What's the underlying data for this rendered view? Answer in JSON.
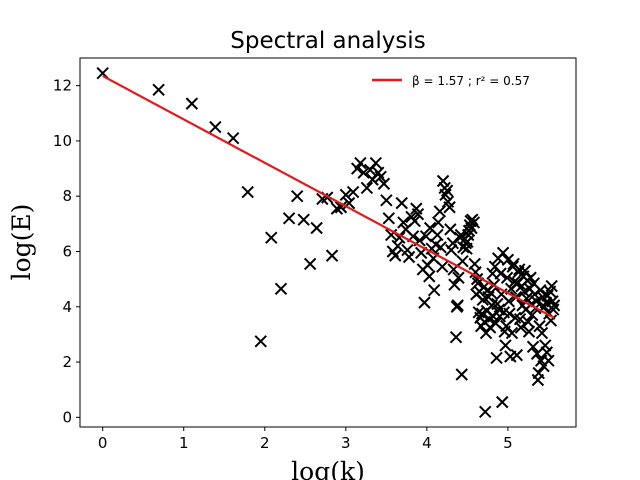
{
  "chart_data": {
    "type": "scatter",
    "title": "Spectral analysis",
    "xlabel": "log(k)",
    "ylabel": "log(E)",
    "xlim": [
      -0.28,
      5.84
    ],
    "ylim": [
      -0.35,
      13.0
    ],
    "xticks": [
      0,
      1,
      2,
      3,
      4,
      5
    ],
    "yticks": [
      0,
      2,
      4,
      6,
      8,
      10,
      12
    ],
    "grid": false,
    "legend_placement": "top-right",
    "series": [
      {
        "name": "",
        "marker": "x",
        "color": "#000000",
        "points": [
          [
            0.0,
            12.45
          ],
          [
            0.69,
            11.85
          ],
          [
            1.1,
            11.35
          ],
          [
            1.39,
            10.5
          ],
          [
            1.61,
            10.1
          ],
          [
            1.79,
            8.15
          ],
          [
            1.95,
            2.75
          ],
          [
            2.08,
            6.5
          ],
          [
            2.2,
            4.65
          ],
          [
            2.3,
            7.2
          ],
          [
            2.4,
            8.0
          ],
          [
            2.48,
            7.15
          ],
          [
            2.56,
            5.55
          ],
          [
            2.64,
            6.85
          ],
          [
            2.71,
            7.9
          ],
          [
            2.77,
            7.95
          ],
          [
            2.83,
            5.85
          ],
          [
            2.89,
            7.55
          ],
          [
            2.94,
            7.6
          ],
          [
            3.0,
            8.05
          ],
          [
            3.04,
            7.75
          ],
          [
            3.09,
            8.15
          ],
          [
            3.14,
            9.0
          ],
          [
            3.18,
            9.2
          ],
          [
            3.22,
            8.85
          ],
          [
            3.26,
            8.3
          ],
          [
            3.3,
            8.95
          ],
          [
            3.33,
            8.6
          ],
          [
            3.37,
            9.2
          ],
          [
            3.4,
            8.85
          ],
          [
            3.43,
            8.7
          ],
          [
            3.47,
            8.45
          ],
          [
            3.5,
            7.85
          ],
          [
            3.53,
            7.2
          ],
          [
            3.56,
            6.6
          ],
          [
            3.58,
            6.0
          ],
          [
            3.61,
            5.85
          ],
          [
            3.64,
            6.2
          ],
          [
            3.66,
            6.5
          ],
          [
            3.69,
            7.75
          ],
          [
            3.71,
            7.05
          ],
          [
            3.74,
            6.8
          ],
          [
            3.76,
            6.05
          ],
          [
            3.78,
            5.8
          ],
          [
            3.81,
            7.25
          ],
          [
            3.83,
            6.55
          ],
          [
            3.85,
            7.1
          ],
          [
            3.87,
            7.55
          ],
          [
            3.89,
            7.35
          ],
          [
            3.91,
            6.4
          ],
          [
            3.93,
            5.95
          ],
          [
            3.95,
            5.35
          ],
          [
            3.97,
            4.15
          ],
          [
            3.99,
            6.55
          ],
          [
            4.01,
            5.5
          ],
          [
            4.03,
            5.1
          ],
          [
            4.04,
            6.85
          ],
          [
            4.06,
            6.1
          ],
          [
            4.08,
            5.75
          ],
          [
            4.09,
            4.6
          ],
          [
            4.11,
            6.25
          ],
          [
            4.13,
            6.6
          ],
          [
            4.14,
            7.05
          ],
          [
            4.16,
            7.45
          ],
          [
            4.17,
            6.15
          ],
          [
            4.19,
            5.45
          ],
          [
            4.2,
            8.55
          ],
          [
            4.22,
            8.3
          ],
          [
            4.23,
            8.05
          ],
          [
            4.25,
            8.2
          ],
          [
            4.26,
            7.8
          ],
          [
            4.28,
            7.6
          ],
          [
            4.29,
            6.8
          ],
          [
            4.3,
            6.05
          ],
          [
            4.32,
            6.3
          ],
          [
            4.33,
            5.35
          ],
          [
            4.34,
            4.8
          ],
          [
            4.36,
            2.9
          ],
          [
            4.37,
            4.0
          ],
          [
            4.38,
            4.05
          ],
          [
            4.39,
            5.05
          ],
          [
            4.41,
            6.5
          ],
          [
            4.42,
            6.6
          ],
          [
            4.43,
            1.55
          ],
          [
            4.44,
            5.65
          ],
          [
            4.45,
            6.15
          ],
          [
            4.47,
            6.45
          ],
          [
            4.48,
            6.3
          ],
          [
            4.49,
            6.1
          ],
          [
            4.5,
            6.35
          ],
          [
            4.51,
            6.6
          ],
          [
            4.52,
            6.75
          ],
          [
            4.53,
            6.95
          ],
          [
            4.54,
            7.1
          ],
          [
            4.55,
            6.85
          ],
          [
            4.56,
            7.15
          ],
          [
            4.58,
            7.05
          ],
          [
            4.59,
            5.55
          ],
          [
            4.6,
            5.25
          ],
          [
            4.61,
            4.45
          ],
          [
            4.62,
            5.0
          ],
          [
            4.63,
            4.85
          ],
          [
            4.64,
            3.8
          ],
          [
            4.65,
            4.55
          ],
          [
            4.66,
            3.6
          ],
          [
            4.67,
            3.3
          ],
          [
            4.68,
            3.75
          ],
          [
            4.69,
            4.25
          ],
          [
            4.7,
            4.7
          ],
          [
            4.71,
            3.45
          ],
          [
            4.72,
            0.2
          ],
          [
            4.73,
            3.05
          ],
          [
            4.74,
            3.85
          ],
          [
            4.75,
            4.6
          ],
          [
            4.76,
            4.35
          ],
          [
            4.77,
            3.55
          ],
          [
            4.78,
            3.25
          ],
          [
            4.79,
            4.5
          ],
          [
            4.8,
            4.05
          ],
          [
            4.81,
            5.2
          ],
          [
            4.82,
            3.65
          ],
          [
            4.83,
            4.8
          ],
          [
            4.84,
            5.45
          ],
          [
            4.85,
            3.4
          ],
          [
            4.86,
            2.15
          ],
          [
            4.87,
            4.1
          ],
          [
            4.88,
            5.75
          ],
          [
            4.89,
            3.9
          ],
          [
            4.9,
            3.65
          ],
          [
            4.91,
            5.2
          ],
          [
            4.92,
            4.45
          ],
          [
            4.93,
            0.55
          ],
          [
            4.94,
            5.95
          ],
          [
            4.95,
            3.8
          ],
          [
            4.96,
            3.1
          ],
          [
            4.97,
            2.6
          ],
          [
            4.98,
            3.3
          ],
          [
            4.99,
            5.05
          ],
          [
            5.0,
            5.7
          ],
          [
            5.01,
            4.2
          ],
          [
            5.02,
            3.75
          ],
          [
            5.03,
            2.2
          ],
          [
            5.04,
            4.65
          ],
          [
            5.05,
            3.05
          ],
          [
            5.06,
            5.45
          ],
          [
            5.07,
            5.55
          ],
          [
            5.08,
            4.9
          ],
          [
            5.09,
            3.6
          ],
          [
            5.1,
            4.35
          ],
          [
            5.11,
            2.25
          ],
          [
            5.12,
            4.85
          ],
          [
            5.13,
            5.25
          ],
          [
            5.14,
            5.35
          ],
          [
            5.15,
            3.55
          ],
          [
            5.16,
            3.25
          ],
          [
            5.17,
            4.75
          ],
          [
            5.18,
            4.05
          ],
          [
            5.19,
            5.1
          ],
          [
            5.2,
            4.55
          ],
          [
            5.21,
            5.3
          ],
          [
            5.22,
            3.9
          ],
          [
            5.23,
            4.3
          ],
          [
            5.24,
            4.95
          ],
          [
            5.25,
            3.45
          ],
          [
            5.26,
            3.1
          ],
          [
            5.27,
            4.65
          ],
          [
            5.28,
            5.05
          ],
          [
            5.29,
            4.1
          ],
          [
            5.3,
            3.7
          ],
          [
            5.31,
            2.55
          ],
          [
            5.32,
            4.85
          ],
          [
            5.33,
            4.45
          ],
          [
            5.34,
            3.95
          ],
          [
            5.35,
            4.2
          ],
          [
            5.36,
            2.3
          ],
          [
            5.37,
            1.35
          ],
          [
            5.38,
            1.6
          ],
          [
            5.39,
            3.3
          ],
          [
            5.4,
            4.6
          ],
          [
            5.41,
            2.05
          ],
          [
            5.42,
            3.05
          ],
          [
            5.43,
            4.35
          ],
          [
            5.44,
            1.85
          ],
          [
            5.45,
            4.0
          ],
          [
            5.46,
            2.6
          ],
          [
            5.47,
            4.15
          ],
          [
            5.48,
            2.35
          ],
          [
            5.49,
            4.4
          ],
          [
            5.5,
            2.05
          ],
          [
            5.51,
            3.75
          ],
          [
            5.52,
            4.55
          ],
          [
            5.53,
            3.5
          ],
          [
            5.54,
            4.75
          ],
          [
            5.55,
            4.2
          ],
          [
            5.56,
            3.9
          ],
          [
            5.57,
            4.05
          ]
        ]
      }
    ],
    "fit_line": {
      "x": [
        0.0,
        5.57
      ],
      "y": [
        12.35,
        3.6
      ],
      "color": "#e31a1c",
      "legend": "β = 1.57 ; r² = 0.57"
    }
  }
}
